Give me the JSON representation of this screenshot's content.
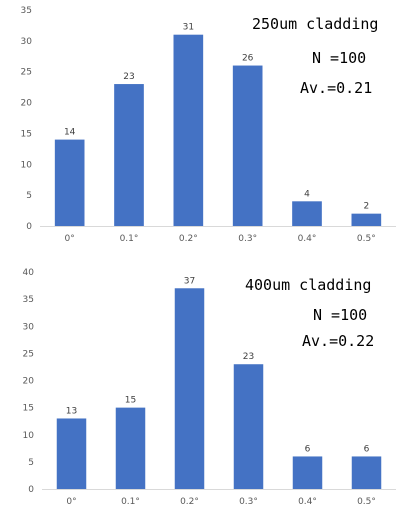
{
  "chart_data": [
    {
      "type": "bar",
      "categories": [
        "0°",
        "0.1°",
        "0.2°",
        "0.3°",
        "0.4°",
        "0.5°"
      ],
      "values": [
        14,
        23,
        31,
        26,
        4,
        2
      ],
      "ylim": [
        0,
        35
      ],
      "yticks": [
        0,
        5,
        10,
        15,
        20,
        25,
        30,
        35
      ],
      "grid": false,
      "bar_color": "#4472C4",
      "annotations": [
        "250um cladding",
        "N =100",
        "Av.=0.21"
      ]
    },
    {
      "type": "bar",
      "categories": [
        "0°",
        "0.1°",
        "0.2°",
        "0.3°",
        "0.4°",
        "0.5°"
      ],
      "values": [
        13,
        15,
        37,
        23,
        6,
        6
      ],
      "ylim": [
        0,
        40
      ],
      "yticks": [
        0,
        5,
        10,
        15,
        20,
        25,
        30,
        35,
        40
      ],
      "grid": false,
      "bar_color": "#4472C4",
      "annotations": [
        "400um cladding",
        "N =100",
        "Av.=0.22"
      ]
    }
  ]
}
